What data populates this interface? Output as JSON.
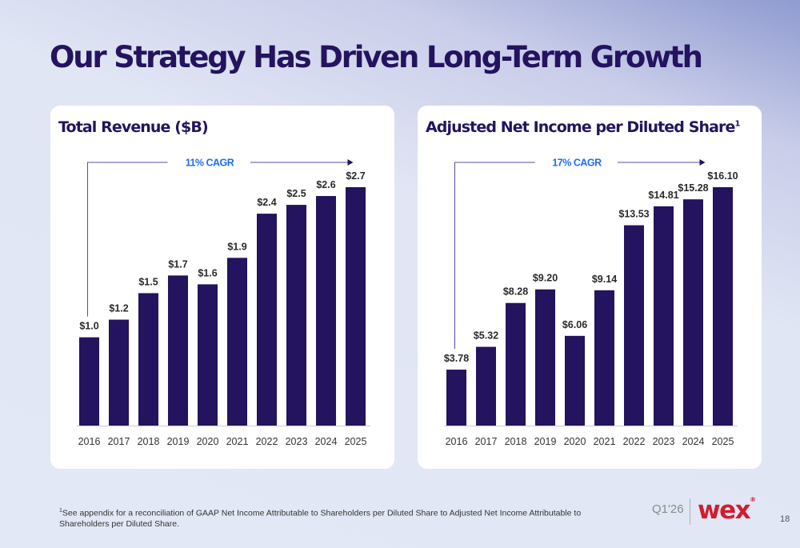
{
  "slide": {
    "title": "Our Strategy Has Driven Long-Term Growth",
    "footnote_marker": "1",
    "footnote": "See appendix for a reconciliation of GAAP Net Income Attributable to Shareholders per Diluted Share to Adjusted Net Income Attributable to Shareholders per Diluted Share.",
    "quarter": "Q1'26",
    "logo": "wex",
    "logo_mark": "®",
    "page_number": "18"
  },
  "colors": {
    "title": "#24135f",
    "bar": "#24135f",
    "cagr": "#1f6cf0",
    "logo": "#d01e2f",
    "axis": "#d8d4f0",
    "bracket": "#5a4ea0"
  },
  "chart_data": [
    {
      "type": "bar",
      "title": "Total Revenue ($B)",
      "title_sup": "",
      "xlabel": "",
      "ylabel": "",
      "categories": [
        "2016",
        "2017",
        "2018",
        "2019",
        "2020",
        "2021",
        "2022",
        "2023",
        "2024",
        "2025"
      ],
      "values": [
        1.0,
        1.2,
        1.5,
        1.7,
        1.6,
        1.9,
        2.4,
        2.5,
        2.6,
        2.7
      ],
      "labels": [
        "$1.0",
        "$1.2",
        "$1.5",
        "$1.7",
        "$1.6",
        "$1.9",
        "$2.4",
        "$2.5",
        "$2.6",
        "$2.7"
      ],
      "ylim": [
        0,
        2.7
      ],
      "grid": false,
      "annotation": "11% CAGR"
    },
    {
      "type": "bar",
      "title": "Adjusted Net Income per Diluted Share",
      "title_sup": "1",
      "xlabel": "",
      "ylabel": "",
      "categories": [
        "2016",
        "2017",
        "2018",
        "2019",
        "2020",
        "2021",
        "2022",
        "2023",
        "2024",
        "2025"
      ],
      "values": [
        3.78,
        5.32,
        8.28,
        9.2,
        6.06,
        9.14,
        13.53,
        14.81,
        15.28,
        16.1
      ],
      "labels": [
        "$3.78",
        "$5.32",
        "$8.28",
        "$9.20",
        "$6.06",
        "$9.14",
        "$13.53",
        "$14.81",
        "$15.28",
        "$16.10"
      ],
      "ylim": [
        0,
        16.1
      ],
      "grid": false,
      "annotation": "17% CAGR"
    }
  ]
}
